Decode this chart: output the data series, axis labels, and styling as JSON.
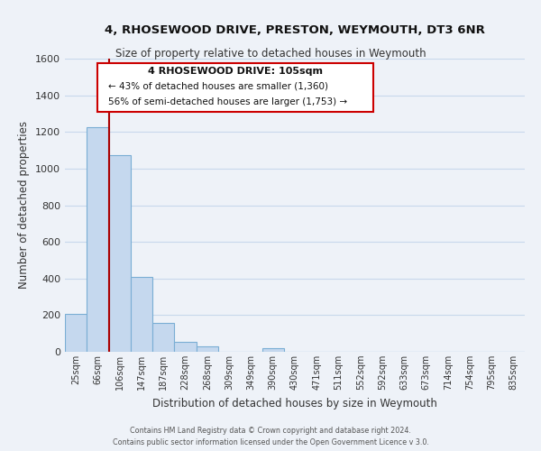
{
  "title": "4, RHOSEWOOD DRIVE, PRESTON, WEYMOUTH, DT3 6NR",
  "subtitle": "Size of property relative to detached houses in Weymouth",
  "xlabel": "Distribution of detached houses by size in Weymouth",
  "ylabel": "Number of detached properties",
  "categories": [
    "25sqm",
    "66sqm",
    "106sqm",
    "147sqm",
    "187sqm",
    "228sqm",
    "268sqm",
    "309sqm",
    "349sqm",
    "390sqm",
    "430sqm",
    "471sqm",
    "511sqm",
    "552sqm",
    "592sqm",
    "633sqm",
    "673sqm",
    "714sqm",
    "754sqm",
    "795sqm",
    "835sqm"
  ],
  "values": [
    207,
    1228,
    1075,
    407,
    160,
    52,
    28,
    0,
    0,
    18,
    0,
    0,
    0,
    0,
    0,
    0,
    0,
    0,
    0,
    0,
    0
  ],
  "bar_color": "#c5d8ee",
  "bar_edgecolor": "#7aaed4",
  "vline_color": "#aa0000",
  "vline_x_index": 1.5,
  "ylim": [
    0,
    1600
  ],
  "yticks": [
    0,
    200,
    400,
    600,
    800,
    1000,
    1200,
    1400,
    1600
  ],
  "annotation_line1": "4 RHOSEWOOD DRIVE: 105sqm",
  "annotation_line2": "← 43% of detached houses are smaller (1,360)",
  "annotation_line3": "56% of semi-detached houses are larger (1,753) →",
  "footer_line1": "Contains HM Land Registry data © Crown copyright and database right 2024.",
  "footer_line2": "Contains public sector information licensed under the Open Government Licence v 3.0.",
  "grid_color": "#c8d8ec",
  "background_color": "#eef2f8",
  "title_fontsize": 9.5,
  "subtitle_fontsize": 8.5
}
